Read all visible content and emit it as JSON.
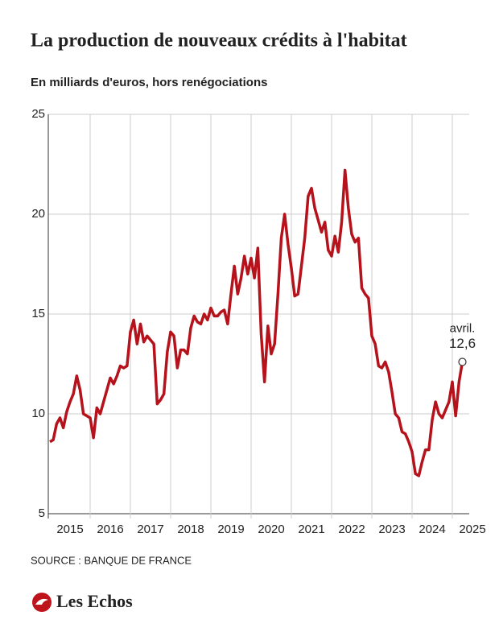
{
  "chart_data": {
    "type": "line",
    "title": "La production de nouveaux crédits à l'habitat",
    "subtitle": "En milliards d'euros, hors renégociations",
    "source": "SOURCE : BANQUE DE FRANCE",
    "brand": "Les Echos",
    "annotation": "avril.",
    "x": [
      2015,
      2015.083,
      2015.167,
      2015.25,
      2015.333,
      2015.417,
      2015.5,
      2015.583,
      2015.667,
      2015.75,
      2015.833,
      2015.917,
      2016,
      2016.083,
      2016.167,
      2016.25,
      2016.333,
      2016.417,
      2016.5,
      2016.583,
      2016.667,
      2016.75,
      2016.833,
      2016.917,
      2017,
      2017.083,
      2017.167,
      2017.25,
      2017.333,
      2017.417,
      2017.5,
      2017.583,
      2017.667,
      2017.75,
      2017.833,
      2017.917,
      2018,
      2018.083,
      2018.167,
      2018.25,
      2018.333,
      2018.417,
      2018.5,
      2018.583,
      2018.667,
      2018.75,
      2018.833,
      2018.917,
      2019,
      2019.083,
      2019.167,
      2019.25,
      2019.333,
      2019.417,
      2019.5,
      2019.583,
      2019.667,
      2019.75,
      2019.833,
      2019.917,
      2020,
      2020.083,
      2020.167,
      2020.25,
      2020.333,
      2020.417,
      2020.5,
      2020.583,
      2020.667,
      2020.75,
      2020.833,
      2020.917,
      2021,
      2021.083,
      2021.167,
      2021.25,
      2021.333,
      2021.417,
      2021.5,
      2021.583,
      2021.667,
      2021.75,
      2021.833,
      2021.917,
      2022,
      2022.083,
      2022.167,
      2022.25,
      2022.333,
      2022.417,
      2022.5,
      2022.583,
      2022.667,
      2022.75,
      2022.833,
      2022.917,
      2023,
      2023.083,
      2023.167,
      2023.25,
      2023.333,
      2023.417,
      2023.5,
      2023.583,
      2023.667,
      2023.75,
      2023.833,
      2023.917,
      2024,
      2024.083,
      2024.167,
      2024.25,
      2024.333,
      2024.417,
      2024.5,
      2024.583,
      2024.667,
      2024.75,
      2024.833,
      2024.917,
      2025,
      2025.083,
      2025.167,
      2025.25
    ],
    "series": [
      {
        "color": "#b5121b",
        "values": [
          8.6,
          8.7,
          9.5,
          9.8,
          9.3,
          10.1,
          10.6,
          11.0,
          11.9,
          11.2,
          10.0,
          9.9,
          9.8,
          8.8,
          10.3,
          10.0,
          10.6,
          11.2,
          11.8,
          11.5,
          11.9,
          12.4,
          12.3,
          12.4,
          14.1,
          14.7,
          13.5,
          14.5,
          13.6,
          13.9,
          13.7,
          13.5,
          10.5,
          10.7,
          11.0,
          13.1,
          14.1,
          13.9,
          12.3,
          13.2,
          13.2,
          13.0,
          14.3,
          14.9,
          14.6,
          14.5,
          15.0,
          14.7,
          15.3,
          14.9,
          14.9,
          15.1,
          15.2,
          14.5,
          16.0,
          17.4,
          16.0,
          16.8,
          17.9,
          17.0,
          17.8,
          16.8,
          18.3,
          14.0,
          11.6,
          14.4,
          13.0,
          13.5,
          16.0,
          18.8,
          20.0,
          18.5,
          17.3,
          15.9,
          16.0,
          17.4,
          18.8,
          20.9,
          21.3,
          20.3,
          19.7,
          19.1,
          19.6,
          18.2,
          17.9,
          18.9,
          18.1,
          19.6,
          22.2,
          20.3,
          19.0,
          18.6,
          18.8,
          16.3,
          16.0,
          15.8,
          13.9,
          13.5,
          12.4,
          12.3,
          12.6,
          12.1,
          11.1,
          10.0,
          9.8,
          9.1,
          9.0,
          8.6,
          8.1,
          7.0,
          6.9,
          7.6,
          8.2,
          8.2,
          9.7,
          10.6,
          10.0,
          9.8,
          10.2,
          10.6,
          11.6,
          9.9,
          11.6,
          12.6
        ],
        "value_labels": [
          null,
          null,
          null,
          null,
          null,
          null,
          null,
          null,
          null,
          null,
          null,
          null,
          null,
          null,
          null,
          null,
          null,
          null,
          null,
          null,
          null,
          null,
          null,
          null,
          null,
          null,
          null,
          null,
          null,
          null,
          null,
          null,
          null,
          null,
          null,
          null,
          null,
          null,
          null,
          null,
          null,
          null,
          null,
          null,
          null,
          null,
          null,
          null,
          null,
          null,
          null,
          null,
          null,
          null,
          null,
          null,
          null,
          null,
          null,
          null,
          null,
          null,
          null,
          null,
          null,
          null,
          null,
          null,
          null,
          null,
          null,
          null,
          null,
          null,
          null,
          null,
          null,
          null,
          null,
          null,
          null,
          null,
          null,
          null,
          null,
          null,
          null,
          null,
          null,
          null,
          null,
          null,
          null,
          null,
          null,
          null,
          null,
          null,
          null,
          null,
          null,
          null,
          null,
          null,
          null,
          null,
          null,
          null,
          null,
          null,
          null,
          null,
          null,
          null,
          null,
          null,
          null,
          null,
          null,
          null,
          null,
          null,
          null,
          "12,6"
        ]
      }
    ],
    "xlim": [
      2014.96,
      2025.42
    ],
    "xticks": [
      {
        "value": 2015.5,
        "label": "2015"
      },
      {
        "value": 2016.5,
        "label": "2016"
      },
      {
        "value": 2017.5,
        "label": "2017"
      },
      {
        "value": 2018.5,
        "label": "2018"
      },
      {
        "value": 2019.5,
        "label": "2019"
      },
      {
        "value": 2020.5,
        "label": "2020"
      },
      {
        "value": 2021.5,
        "label": "2021"
      },
      {
        "value": 2022.5,
        "label": "2022"
      },
      {
        "value": 2023.5,
        "label": "2023"
      },
      {
        "value": 2024.5,
        "label": "2024"
      },
      {
        "value": 2025.5,
        "label": "2025"
      }
    ],
    "ylim": [
      5,
      25
    ],
    "yticks": [
      5,
      10,
      15,
      20,
      25
    ],
    "grid": true
  }
}
